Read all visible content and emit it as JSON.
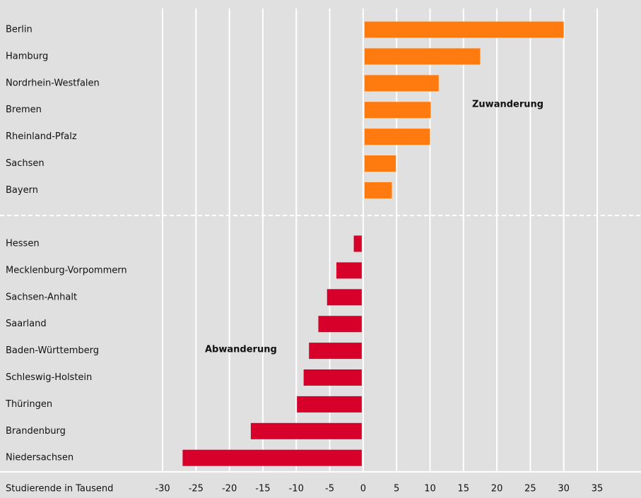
{
  "chart_data": {
    "type": "hbar",
    "categories": [
      "Berlin",
      "Hamburg",
      "Nordrhein-Westfalen",
      "Bremen",
      "Rheinland-Pfalz",
      "Sachsen",
      "Bayern",
      "Hessen",
      "Mecklenburg-Vorpommern",
      "Sachsen-Anhalt",
      "Saarland",
      "Baden-Württemberg",
      "Schleswig-Holstein",
      "Thüringen",
      "Brandenburg",
      "Niedersachsen"
    ],
    "values": [
      30,
      17.5,
      11.3,
      10.1,
      10,
      4.9,
      4.3,
      -1.4,
      -4,
      -5.4,
      -6.7,
      -8.1,
      -8.9,
      -9.9,
      -16.8,
      -27
    ],
    "color_positive": "#ff7b10",
    "color_negative": "#d6002a",
    "xlabel": "Studierende in Tausend",
    "annotations": [
      "Zuwanderung",
      "Abwanderung"
    ],
    "xlim": [
      -30,
      35
    ],
    "xticks": [
      -30,
      -25,
      -20,
      -15,
      -10,
      -5,
      0,
      5,
      10,
      15,
      20,
      25,
      30,
      35
    ],
    "grid": true
  }
}
